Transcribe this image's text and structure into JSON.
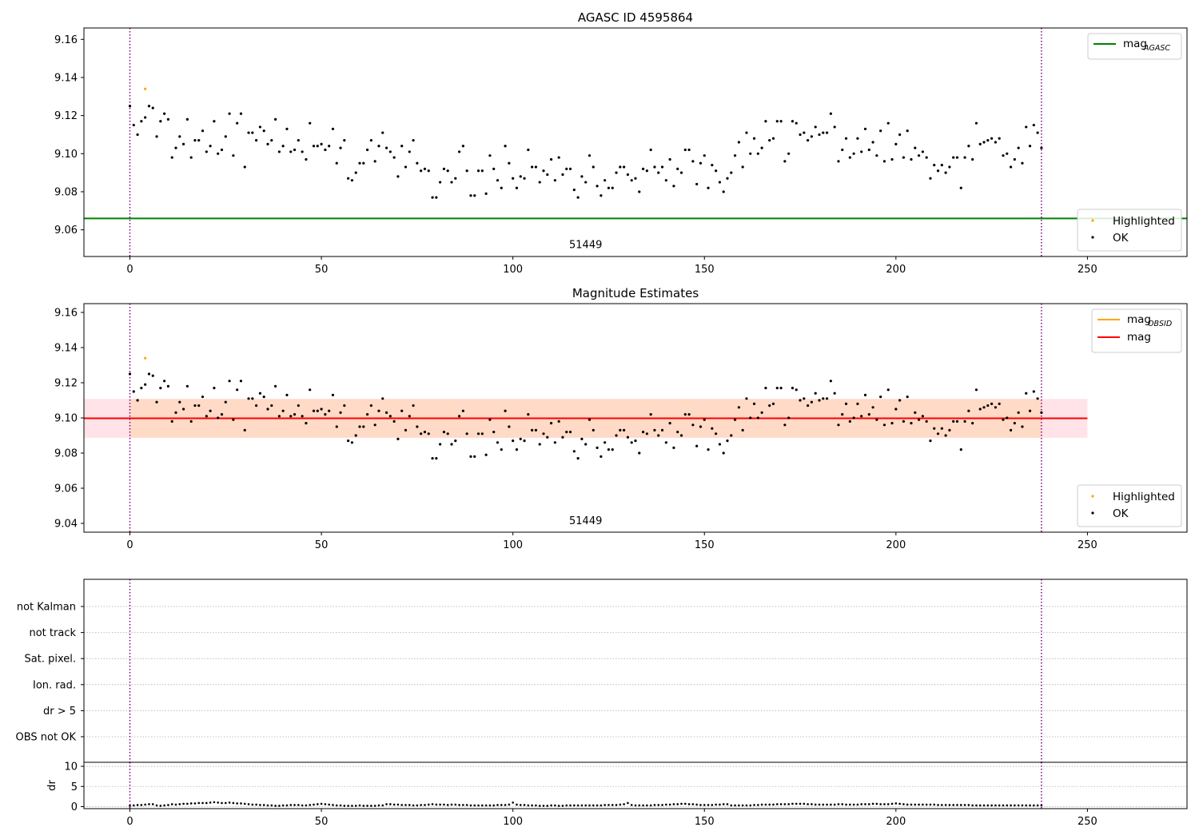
{
  "chart_data": [
    {
      "type": "scatter",
      "title": "AGASC ID 4595864",
      "xlim": [
        -12,
        276
      ],
      "ylim": [
        9.046,
        9.166
      ],
      "xticks": [
        0,
        50,
        100,
        150,
        200,
        250
      ],
      "yticks": [
        9.06,
        9.08,
        9.1,
        9.12,
        9.14,
        9.16
      ],
      "ytick_decimals": 2,
      "vlines": [
        0,
        238
      ],
      "hlines": [
        {
          "name": "mag_AGASC",
          "y": 9.066,
          "x_range": [
            -12,
            276
          ],
          "color": "#008000"
        }
      ],
      "band": null,
      "annotation": {
        "text": "51449",
        "x": 119,
        "y": 9.0505
      },
      "legend_upper": {
        "position": "top-right",
        "entries": [
          {
            "text": "mag",
            "sub": "AGASC",
            "color": "#008000"
          }
        ]
      },
      "legend_lower": {
        "position": "bottom-right",
        "entries": [
          {
            "text": "Highlighted",
            "color": "#ffa500"
          },
          {
            "text": "OK",
            "color": "#000000"
          }
        ]
      },
      "grid": false
    },
    {
      "type": "scatter",
      "title": "Magnitude Estimates",
      "xlim": [
        -12,
        276
      ],
      "ylim": [
        9.035,
        9.165
      ],
      "xticks": [
        0,
        50,
        100,
        150,
        200,
        250
      ],
      "yticks": [
        9.04,
        9.06,
        9.08,
        9.1,
        9.12,
        9.14,
        9.16
      ],
      "ytick_decimals": 2,
      "vlines": [
        0,
        238
      ],
      "hlines": [
        {
          "name": "mag",
          "y": 9.0998,
          "x_range": [
            -12,
            250
          ],
          "color": "#ff0000"
        }
      ],
      "band": {
        "y0": 9.0887,
        "y1": 9.1108,
        "segments": [
          {
            "x0": -12,
            "x1": 0,
            "color": "#ffc0cb",
            "opacity": 0.45
          },
          {
            "x0": 0,
            "x1": 238,
            "color": "#ff8c50",
            "opacity": 0.32
          },
          {
            "x0": 238,
            "x1": 250,
            "color": "#ffc0cb",
            "opacity": 0.45
          }
        ]
      },
      "annotation": {
        "text": "51449",
        "x": 119,
        "y": 9.0395
      },
      "legend_upper": {
        "position": "top-right",
        "entries": [
          {
            "text": "mag",
            "sub": "OBSID",
            "color": "#ffa500"
          },
          {
            "text": "mag",
            "sub": "",
            "color": "#ff0000"
          }
        ]
      },
      "legend_lower": {
        "position": "bottom-right",
        "entries": [
          {
            "text": "Highlighted",
            "color": "#ffa500"
          },
          {
            "text": "OK",
            "color": "#000000"
          }
        ]
      },
      "grid": false
    },
    {
      "type": "scatter",
      "categories": [
        "not Kalman",
        "not track",
        "Sat. pixel.",
        "Ion. rad.",
        "dr > 5",
        "OBS not OK"
      ],
      "xlim": [
        -12,
        276
      ],
      "vlines": [
        0,
        238
      ],
      "points": [],
      "grid": true
    },
    {
      "type": "scatter",
      "ylabel": "dr",
      "xlim": [
        -12,
        276
      ],
      "ylim": [
        -0.5,
        11
      ],
      "xticks": [
        0,
        50,
        100,
        150,
        200,
        250
      ],
      "yticks": [
        0,
        5,
        10
      ],
      "vlines": [
        0,
        238
      ],
      "grid": true
    }
  ],
  "series": {
    "x_range": [
      0,
      238
    ],
    "highlighted": [
      {
        "x": 4,
        "y": 9.134
      }
    ],
    "ok_mag": [
      9.125,
      9.115,
      9.11,
      9.117,
      9.119,
      9.125,
      9.124,
      9.109,
      9.117,
      9.121,
      9.118,
      9.098,
      9.103,
      9.109,
      9.105,
      9.118,
      9.098,
      9.107,
      9.107,
      9.112,
      9.101,
      9.104,
      9.117,
      9.1,
      9.102,
      9.109,
      9.121,
      9.099,
      9.116,
      9.121,
      9.093,
      9.111,
      9.111,
      9.107,
      9.114,
      9.112,
      9.105,
      9.107,
      9.118,
      9.101,
      9.104,
      9.113,
      9.101,
      9.102,
      9.107,
      9.101,
      9.097,
      9.116,
      9.104,
      9.104,
      9.105,
      9.102,
      9.104,
      9.113,
      9.095,
      9.103,
      9.107,
      9.087,
      9.086,
      9.09,
      9.095,
      9.095,
      9.102,
      9.107,
      9.096,
      9.104,
      9.111,
      9.103,
      9.101,
      9.098,
      9.088,
      9.104,
      9.093,
      9.101,
      9.107,
      9.095,
      9.091,
      9.092,
      9.091,
      9.077,
      9.077,
      9.085,
      9.092,
      9.091,
      9.085,
      9.087,
      9.101,
      9.104,
      9.091,
      9.078,
      9.078,
      9.091,
      9.091,
      9.079,
      9.099,
      9.092,
      9.086,
      9.082,
      9.104,
      9.095,
      9.087,
      9.082,
      9.088,
      9.087,
      9.102,
      9.093,
      9.093,
      9.085,
      9.091,
      9.089,
      9.097,
      9.086,
      9.098,
      9.089,
      9.092,
      9.092,
      9.081,
      9.077,
      9.088,
      9.085,
      9.099,
      9.093,
      9.083,
      9.078,
      9.086,
      9.082,
      9.082,
      9.09,
      9.093,
      9.093,
      9.089,
      9.086,
      9.087,
      9.08,
      9.092,
      9.091,
      9.102,
      9.093,
      9.09,
      9.093,
      9.086,
      9.097,
      9.083,
      9.092,
      9.09,
      9.102,
      9.102,
      9.096,
      9.084,
      9.095,
      9.099,
      9.082,
      9.094,
      9.091,
      9.085,
      9.08,
      9.087,
      9.09,
      9.099,
      9.106,
      9.093,
      9.111,
      9.1,
      9.108,
      9.1,
      9.103,
      9.117,
      9.107,
      9.108,
      9.117,
      9.117,
      9.096,
      9.1,
      9.117,
      9.116,
      9.11,
      9.111,
      9.107,
      9.109,
      9.114,
      9.11,
      9.111,
      9.111,
      9.121,
      9.114,
      9.096,
      9.102,
      9.108,
      9.098,
      9.1,
      9.108,
      9.101,
      9.113,
      9.102,
      9.106,
      9.099,
      9.112,
      9.096,
      9.116,
      9.097,
      9.105,
      9.11,
      9.098,
      9.112,
      9.097,
      9.103,
      9.099,
      9.101,
      9.098,
      9.087,
      9.094,
      9.091,
      9.094,
      9.09,
      9.093,
      9.098,
      9.098,
      9.082,
      9.098,
      9.104,
      9.097,
      9.116,
      9.105,
      9.106,
      9.107,
      9.108,
      9.106,
      9.108,
      9.099,
      9.1,
      9.093,
      9.097,
      9.103,
      9.095,
      9.114,
      9.104,
      9.115,
      9.111,
      9.103
    ],
    "dr": [
      0.2,
      0.3,
      0.4,
      0.4,
      0.5,
      0.6,
      0.6,
      0.3,
      0.2,
      0.3,
      0.4,
      0.6,
      0.5,
      0.6,
      0.7,
      0.7,
      0.8,
      0.8,
      0.9,
      0.9,
      0.9,
      1.0,
      1.1,
      1.0,
      0.9,
      0.9,
      1.0,
      0.9,
      0.8,
      0.8,
      0.7,
      0.6,
      0.5,
      0.5,
      0.4,
      0.4,
      0.3,
      0.3,
      0.2,
      0.2,
      0.3,
      0.3,
      0.4,
      0.4,
      0.4,
      0.3,
      0.3,
      0.4,
      0.5,
      0.6,
      0.7,
      0.6,
      0.5,
      0.4,
      0.3,
      0.3,
      0.2,
      0.2,
      0.2,
      0.2,
      0.3,
      0.2,
      0.2,
      0.2,
      0.2,
      0.3,
      0.3,
      0.6,
      0.6,
      0.5,
      0.5,
      0.4,
      0.4,
      0.4,
      0.3,
      0.3,
      0.4,
      0.4,
      0.5,
      0.6,
      0.5,
      0.5,
      0.5,
      0.4,
      0.5,
      0.5,
      0.4,
      0.4,
      0.4,
      0.3,
      0.3,
      0.3,
      0.3,
      0.3,
      0.3,
      0.3,
      0.4,
      0.4,
      0.4,
      0.5,
      1.0,
      0.5,
      0.4,
      0.4,
      0.3,
      0.3,
      0.3,
      0.2,
      0.2,
      0.2,
      0.3,
      0.3,
      0.2,
      0.2,
      0.3,
      0.3,
      0.3,
      0.3,
      0.3,
      0.3,
      0.3,
      0.3,
      0.3,
      0.3,
      0.4,
      0.4,
      0.4,
      0.4,
      0.5,
      0.6,
      0.9,
      0.4,
      0.3,
      0.3,
      0.3,
      0.3,
      0.3,
      0.4,
      0.4,
      0.4,
      0.5,
      0.5,
      0.6,
      0.6,
      0.7,
      0.7,
      0.6,
      0.6,
      0.5,
      0.4,
      0.4,
      0.4,
      0.4,
      0.5,
      0.5,
      0.6,
      0.6,
      0.3,
      0.3,
      0.3,
      0.3,
      0.3,
      0.3,
      0.4,
      0.4,
      0.5,
      0.5,
      0.5,
      0.5,
      0.6,
      0.6,
      0.6,
      0.6,
      0.7,
      0.7,
      0.7,
      0.7,
      0.6,
      0.6,
      0.5,
      0.5,
      0.5,
      0.5,
      0.5,
      0.5,
      0.6,
      0.6,
      0.5,
      0.5,
      0.5,
      0.5,
      0.6,
      0.6,
      0.6,
      0.7,
      0.7,
      0.6,
      0.6,
      0.6,
      0.7,
      0.8,
      0.7,
      0.6,
      0.5,
      0.5,
      0.5,
      0.5,
      0.5,
      0.5,
      0.5,
      0.5,
      0.4,
      0.4,
      0.4,
      0.4,
      0.4,
      0.4,
      0.4,
      0.4,
      0.4,
      0.3,
      0.3,
      0.3,
      0.3,
      0.3,
      0.3,
      0.3,
      0.3,
      0.3,
      0.3,
      0.3,
      0.3,
      0.3,
      0.3,
      0.3,
      0.3,
      0.3,
      0.3,
      0.3
    ]
  }
}
